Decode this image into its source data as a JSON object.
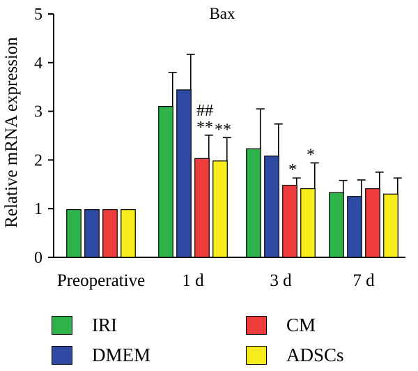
{
  "chart_data": {
    "type": "bar",
    "title": "Bax",
    "xlabel": "",
    "ylabel": "Relative mRNA expression",
    "ylim": [
      0,
      5
    ],
    "yticks": [
      "0",
      "1",
      "2",
      "3",
      "4",
      "5"
    ],
    "categories": [
      "Preoperative",
      "1 d",
      "3 d",
      "7 d"
    ],
    "series": [
      {
        "name": "IRI",
        "color": "#2db34a",
        "values": [
          0.98,
          3.1,
          2.23,
          1.33
        ],
        "errors": [
          0,
          0.7,
          0.82,
          0.25
        ]
      },
      {
        "name": "DMEM",
        "color": "#2e4aa3",
        "values": [
          0.98,
          3.44,
          2.08,
          1.25
        ],
        "errors": [
          0,
          0.73,
          0.66,
          0.34
        ]
      },
      {
        "name": "CM",
        "color": "#ee3b3b",
        "values": [
          0.98,
          2.03,
          1.48,
          1.41
        ],
        "errors": [
          0,
          0.48,
          0.15,
          0.34
        ]
      },
      {
        "name": "ADSCs",
        "color": "#f7ec1b",
        "values": [
          0.98,
          1.98,
          1.41,
          1.3
        ],
        "errors": [
          0,
          0.48,
          0.53,
          0.33
        ]
      }
    ],
    "annotations": [
      {
        "text": "##",
        "category": 1,
        "series": 2,
        "row": 2
      },
      {
        "text": "**",
        "category": 1,
        "series": 2,
        "row": 1
      },
      {
        "text": "**",
        "category": 1,
        "series": 3,
        "row": 1
      },
      {
        "text": "*",
        "category": 2,
        "series": 2,
        "row": 1
      },
      {
        "text": "*",
        "category": 2,
        "series": 3,
        "row": 1
      }
    ],
    "legend": "bottom"
  }
}
